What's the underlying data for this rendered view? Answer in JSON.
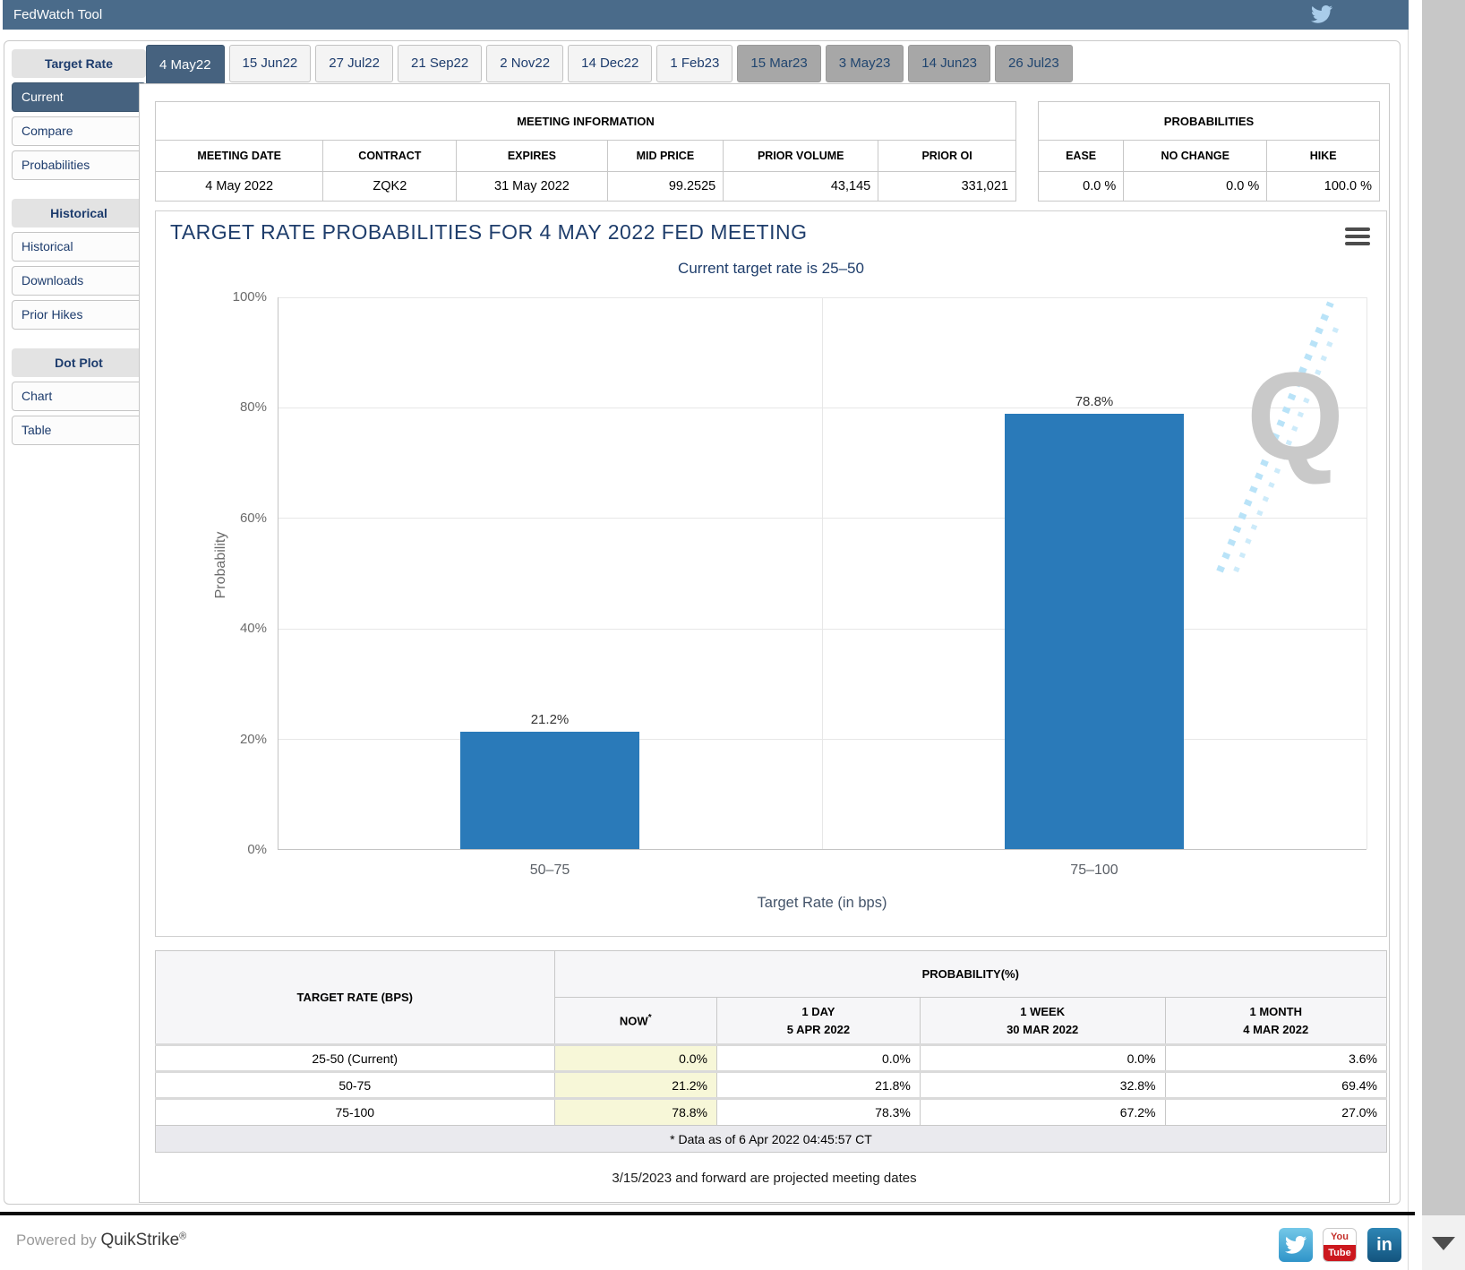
{
  "app": {
    "title": "FedWatch Tool"
  },
  "sidebar": {
    "sections": [
      {
        "header": "Target Rate",
        "items": [
          "Current",
          "Compare",
          "Probabilities"
        ]
      },
      {
        "header": "Historical",
        "items": [
          "Historical",
          "Downloads",
          "Prior Hikes"
        ]
      },
      {
        "header": "Dot Plot",
        "items": [
          "Chart",
          "Table"
        ]
      }
    ]
  },
  "tabs": [
    "4 May22",
    "15 Jun22",
    "27 Jul22",
    "21 Sep22",
    "2 Nov22",
    "14 Dec22",
    "1 Feb23",
    "15 Mar23",
    "3 May23",
    "14 Jun23",
    "26 Jul23"
  ],
  "meeting_info": {
    "title": "MEETING INFORMATION",
    "headers": [
      "MEETING DATE",
      "CONTRACT",
      "EXPIRES",
      "MID PRICE",
      "PRIOR VOLUME",
      "PRIOR OI"
    ],
    "values": [
      "4 May 2022",
      "ZQK2",
      "31 May 2022",
      "99.2525",
      "43,145",
      "331,021"
    ]
  },
  "probabilities_summary": {
    "title": "PROBABILITIES",
    "headers": [
      "EASE",
      "NO CHANGE",
      "HIKE"
    ],
    "values": [
      "0.0 %",
      "0.0 %",
      "100.0 %"
    ]
  },
  "chart_data": {
    "type": "bar",
    "title": "TARGET RATE PROBABILITIES FOR 4 MAY 2022 FED MEETING",
    "subtitle": "Current target rate is 25–50",
    "categories": [
      "50–75",
      "75–100"
    ],
    "values": [
      21.2,
      78.8
    ],
    "value_labels": [
      "21.2%",
      "78.8%"
    ],
    "xlabel": "Target Rate (in bps)",
    "ylabel": "Probability",
    "ylim": [
      0,
      100
    ],
    "yticks": [
      "0%",
      "20%",
      "40%",
      "60%",
      "80%",
      "100%"
    ],
    "grid": true,
    "legend": false,
    "bar_color": "#2a7ab9",
    "watermark": "Q"
  },
  "probability_table": {
    "corner_header": "TARGET RATE (BPS)",
    "group_header": "PROBABILITY(%)",
    "col_headers": [
      {
        "line1": "NOW",
        "note": "*",
        "line2": ""
      },
      {
        "line1": "1 DAY",
        "line2": "5 APR 2022"
      },
      {
        "line1": "1 WEEK",
        "line2": "30 MAR 2022"
      },
      {
        "line1": "1 MONTH",
        "line2": "4 MAR 2022"
      }
    ],
    "rows": [
      {
        "label": "25-50 (Current)",
        "values": [
          "0.0%",
          "0.0%",
          "0.0%",
          "3.6%"
        ]
      },
      {
        "label": "50-75",
        "values": [
          "21.2%",
          "21.8%",
          "32.8%",
          "69.4%"
        ]
      },
      {
        "label": "75-100",
        "values": [
          "78.8%",
          "78.3%",
          "67.2%",
          "27.0%"
        ]
      }
    ],
    "footnote": "* Data as of 6 Apr 2022 04:45:57 CT"
  },
  "projected_note": "3/15/2023 and forward are projected meeting dates",
  "footer": {
    "powered_by": "Powered by",
    "brand": "QuikStrike",
    "registered": "®",
    "youtube_top": "You",
    "youtube_bottom": "Tube",
    "linkedin_text": "in"
  },
  "colors": {
    "accent": "#46627f",
    "header": "#4a6b8a",
    "bar": "#2a7ab9",
    "now_highlight": "#f7f7d8"
  }
}
